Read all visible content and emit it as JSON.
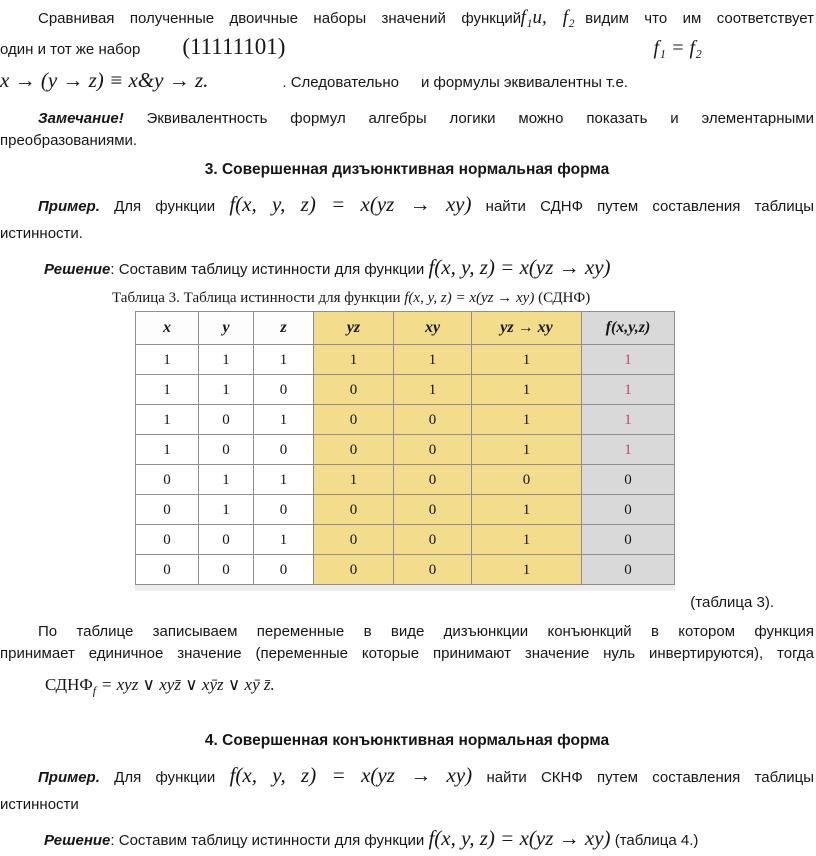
{
  "colors": {
    "table_yellow": "#f3dc8c",
    "table_gray": "#d9d9d9",
    "value_red": "#c44862"
  },
  "intro": {
    "line1": {
      "before": "Сравнивая полученные двоичные наборы значений функций",
      "overlap_math": "f₁и, f₂",
      "after": "видим что им соответствует"
    },
    "line2": {
      "text": "один и тот же набор",
      "binary_set": "(11111101)",
      "equality": "f₁ = f₂"
    },
    "line3": {
      "math": "x → (y → z) ≡ x&y → z.",
      "text1": ". Следовательно",
      "text2": "и формулы эквивалентны т.е."
    }
  },
  "remark": {
    "lead": "Замечание!",
    "line1": "Эквивалентность формул алгебры логики можно показать и элементарными",
    "line2": "преобразованиями."
  },
  "section3": {
    "heading": "3. Совершенная дизъюнктивная нормальная форма",
    "example": {
      "lead": "Пример.",
      "pre": "Для функции",
      "formula": "f(x, y, z) = x(yz → xy)",
      "post": "найти СДНФ путем составления таблицы",
      "line2": "истинности."
    },
    "solution": {
      "lead": "Решение",
      "text": ": Составим таблицу истинности для функции",
      "formula": "f(x, y, z) = x(yz → xy)"
    }
  },
  "table": {
    "caption": {
      "pre": "Таблица 3. Таблица истинности для функции",
      "formula": "f(x, y, z) = x(yz → xy)",
      "post": "(СДНФ)"
    },
    "headers": [
      "x",
      "y",
      "z",
      "yz",
      "xy",
      "yz → xy",
      "f(x,y,z)"
    ],
    "rows": [
      {
        "cells": [
          "1",
          "1",
          "1",
          "1",
          "1",
          "1",
          "1"
        ],
        "f_red": true
      },
      {
        "cells": [
          "1",
          "1",
          "0",
          "0",
          "1",
          "1",
          "1"
        ],
        "f_red": true
      },
      {
        "cells": [
          "1",
          "0",
          "1",
          "0",
          "0",
          "1",
          "1"
        ],
        "f_red": true
      },
      {
        "cells": [
          "1",
          "0",
          "0",
          "0",
          "0",
          "1",
          "1"
        ],
        "f_red": true
      },
      {
        "cells": [
          "0",
          "1",
          "1",
          "1",
          "0",
          "0",
          "0"
        ],
        "f_red": false
      },
      {
        "cells": [
          "0",
          "1",
          "0",
          "0",
          "0",
          "1",
          "0"
        ],
        "f_red": false
      },
      {
        "cells": [
          "0",
          "0",
          "1",
          "0",
          "0",
          "1",
          "0"
        ],
        "f_red": false
      },
      {
        "cells": [
          "0",
          "0",
          "0",
          "0",
          "0",
          "1",
          "0"
        ],
        "f_red": false
      }
    ],
    "note": "(таблица 3)."
  },
  "sdnf": {
    "para_line1": "По таблице записываем переменные в виде дизъюнкции конъюнкций в котором функция",
    "para_line2": "принимает единичное значение (переменные которые принимают значение нуль инвертируются), тогда",
    "name": "СДНФ",
    "sub": "f",
    "body": "= xyz ∨ xyz̄ ∨ xȳz ∨ xȳ z̄."
  },
  "section4": {
    "heading": "4. Совершенная конъюнктивная нормальная форма",
    "example": {
      "lead": "Пример.",
      "pre": "Для функции",
      "formula": "f(x, y, z) = x(yz → xy)",
      "post": "найти СКНФ путем составления таблицы",
      "line2": "истинности"
    },
    "solution": {
      "lead": "Решение",
      "text": ": Составим таблицу истинности для функции",
      "formula": "f(x, y, z) = x(yz → xy)",
      "post": "(таблица 4.)"
    }
  }
}
